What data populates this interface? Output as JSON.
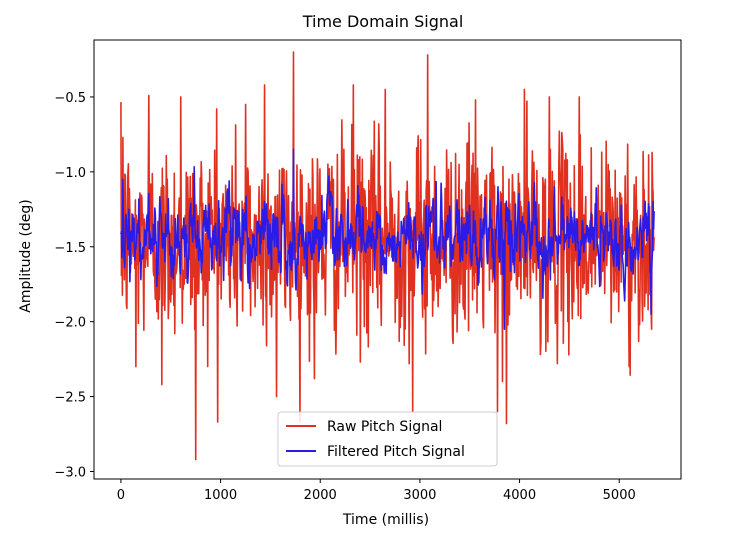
{
  "chart_data": {
    "type": "line",
    "title": "Time Domain Signal",
    "xlabel": "Time (millis)",
    "ylabel": "Amplitude (deg)",
    "xlim": [
      -270,
      5620
    ],
    "ylim": [
      -3.05,
      -0.12
    ],
    "xticks": [
      0,
      1000,
      2000,
      3000,
      4000,
      5000
    ],
    "xtick_labels": [
      "0",
      "1000",
      "2000",
      "3000",
      "4000",
      "5000"
    ],
    "yticks": [
      -3.0,
      -2.5,
      -2.0,
      -1.5,
      -1.0,
      -0.5
    ],
    "ytick_labels": [
      "−3.0",
      "−2.5",
      "−2.0",
      "−1.5",
      "−1.0",
      "−0.5"
    ],
    "grid": false,
    "legend_position": "lower center",
    "x_range": [
      0,
      5350
    ],
    "series": [
      {
        "name": "Raw Pitch Signal",
        "color": "#e03020",
        "summary": {
          "mean": -1.45,
          "min": -2.92,
          "max": -0.2,
          "n_points": 1070
        },
        "notable_points": [
          {
            "x": 20,
            "y": -0.77
          },
          {
            "x": 150,
            "y": -2.3
          },
          {
            "x": 280,
            "y": -0.49
          },
          {
            "x": 410,
            "y": -2.42
          },
          {
            "x": 600,
            "y": -0.5
          },
          {
            "x": 750,
            "y": -2.92
          },
          {
            "x": 960,
            "y": -0.58
          },
          {
            "x": 1250,
            "y": -0.55
          },
          {
            "x": 1440,
            "y": -0.42
          },
          {
            "x": 1560,
            "y": -2.5
          },
          {
            "x": 1730,
            "y": -0.2
          },
          {
            "x": 1940,
            "y": -2.38
          },
          {
            "x": 2330,
            "y": -0.42
          },
          {
            "x": 2650,
            "y": -0.45
          },
          {
            "x": 2930,
            "y": -2.6
          },
          {
            "x": 3080,
            "y": -0.22
          },
          {
            "x": 3560,
            "y": -0.52
          },
          {
            "x": 3780,
            "y": -2.6
          },
          {
            "x": 3870,
            "y": -2.68
          },
          {
            "x": 4050,
            "y": -0.45
          },
          {
            "x": 4300,
            "y": -0.5
          },
          {
            "x": 4600,
            "y": -0.5
          },
          {
            "x": 5100,
            "y": -2.3
          },
          {
            "x": 5330,
            "y": -0.87
          }
        ]
      },
      {
        "name": "Filtered Pitch Signal",
        "color": "#2a1be6",
        "summary": {
          "mean": -1.45,
          "min": -2.05,
          "max": -0.85,
          "n_points": 1070
        },
        "notable_points": [
          {
            "x": 20,
            "y": -1.05
          },
          {
            "x": 1730,
            "y": -0.85
          },
          {
            "x": 3850,
            "y": -2.05
          },
          {
            "x": 5320,
            "y": -1.95
          }
        ]
      }
    ]
  }
}
